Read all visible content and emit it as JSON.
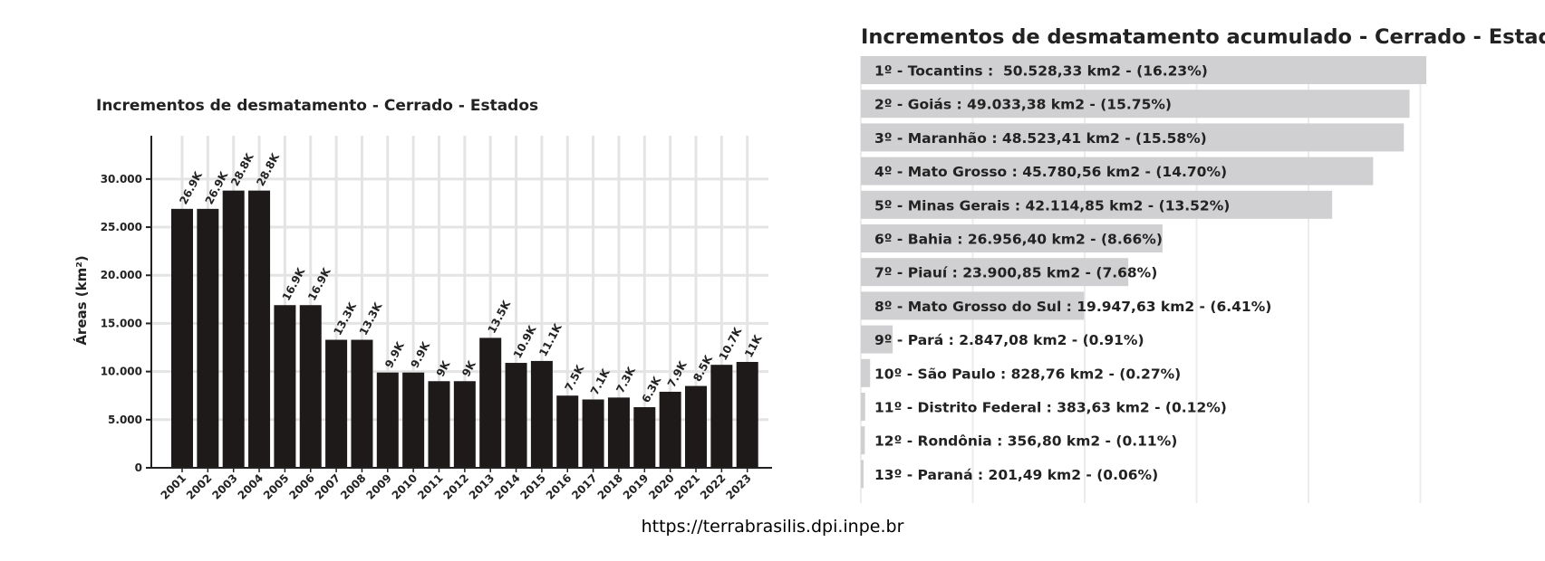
{
  "source_text": "https://terrabrasilis.dpi.inpe.br",
  "chart_data": [
    {
      "type": "bar",
      "title": "Incrementos de desmatamento - Cerrado - Estados",
      "xlabel": "",
      "ylabel": "Áreas (km²)",
      "ylim": [
        0,
        34500
      ],
      "yticks": [
        0,
        5000,
        10000,
        15000,
        20000,
        25000,
        30000
      ],
      "ytick_labels": [
        "0",
        "5.000",
        "10.000",
        "15.000",
        "20.000",
        "25.000",
        "30.000"
      ],
      "grid": true,
      "bar_color": "#1e1a1a",
      "categories": [
        "2001",
        "2002",
        "2003",
        "2004",
        "2005",
        "2006",
        "2007",
        "2008",
        "2009",
        "2010",
        "2011",
        "2012",
        "2013",
        "2014",
        "2015",
        "2016",
        "2017",
        "2018",
        "2019",
        "2020",
        "2021",
        "2022",
        "2023"
      ],
      "values": [
        26900,
        26900,
        28800,
        28800,
        16900,
        16900,
        13300,
        13300,
        9900,
        9900,
        9000,
        9000,
        13500,
        10900,
        11100,
        7500,
        7100,
        7300,
        6300,
        7900,
        8500,
        10700,
        11000
      ],
      "data_labels": [
        "26.9K",
        "26.9K",
        "28.8K",
        "28.8K",
        "16.9K",
        "16.9K",
        "13.3K",
        "13.3K",
        "9.9K",
        "9.9K",
        "9K",
        "9K",
        "13.5K",
        "10.9K",
        "11.1K",
        "7.5K",
        "7.1K",
        "7.3K",
        "6.3K",
        "7.9K",
        "8.5K",
        "10.7K",
        "11K"
      ]
    },
    {
      "type": "bar",
      "orientation": "horizontal",
      "title": "Incrementos de desmatamento acumulado - Cerrado - Estados",
      "grid": true,
      "bar_color": "#d0d0d2",
      "xlim": [
        0,
        55000
      ],
      "categories": [
        "Tocantins",
        "Goiás",
        "Maranhão",
        "Mato Grosso",
        "Minas Gerais",
        "Bahia",
        "Piauí",
        "Mato Grosso do Sul",
        "Pará",
        "São Paulo",
        "Distrito Federal",
        "Rondônia",
        "Paraná"
      ],
      "values": [
        50528.33,
        49033.38,
        48523.41,
        45780.56,
        42114.85,
        26956.4,
        23900.85,
        19947.63,
        2847.08,
        828.76,
        383.63,
        356.8,
        201.49
      ],
      "labels": [
        "1º - Tocantins :  50.528,33 km2 - (16.23%)",
        "2º - Goiás : 49.033,38 km2 - (15.75%)",
        "3º - Maranhão : 48.523,41 km2 - (15.58%)",
        "4º - Mato Grosso : 45.780,56 km2 - (14.70%)",
        "5º - Minas Gerais : 42.114,85 km2 - (13.52%)",
        "6º - Bahia : 26.956,40 km2 - (8.66%)",
        "7º - Piauí : 23.900,85 km2 - (7.68%)",
        "8º - Mato Grosso do Sul : 19.947,63 km2 - (6.41%)",
        "9º - Pará : 2.847,08 km2 - (0.91%)",
        "10º - São Paulo : 828,76 km2 - (0.27%)",
        "11º - Distrito Federal : 383,63 km2 - (0.12%)",
        "12º - Rondônia : 356,80 km2 - (0.11%)",
        "13º - Paraná : 201,49 km2 - (0.06%)"
      ]
    }
  ]
}
